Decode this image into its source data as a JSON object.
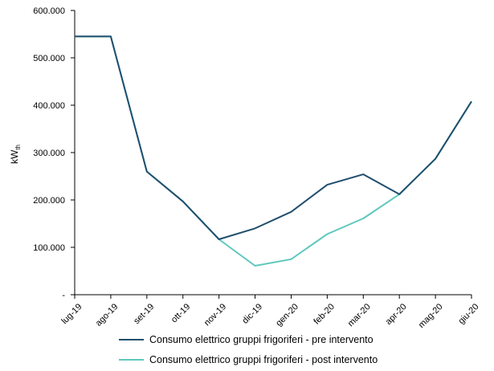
{
  "chart_data": {
    "type": "line",
    "categories": [
      "lug-19",
      "ago-19",
      "set-19",
      "ott-19",
      "nov-19",
      "dic-19",
      "gen-20",
      "feb-20",
      "mar-20",
      "apr-20",
      "mag-20",
      "giu-20"
    ],
    "series": [
      {
        "name": "Consumo elettrico gruppi frigoriferi - pre intervento",
        "color": "#1f4e6e",
        "values": [
          545000,
          545000,
          260000,
          197000,
          117000,
          140000,
          175000,
          232000,
          254000,
          212000,
          287000,
          408000
        ]
      },
      {
        "name": "Consumo elettrico gruppi frigoriferi - post intervento",
        "color": "#5ec8bd",
        "values": [
          545000,
          545000,
          260000,
          197000,
          117000,
          61000,
          75000,
          128000,
          161000,
          212000,
          287000,
          408000
        ]
      }
    ],
    "ylabel": "kW",
    "ylabel_sub": "th",
    "ylim": [
      0,
      600000
    ],
    "yticks": [
      {
        "value": 0,
        "label": "-"
      },
      {
        "value": 100000,
        "label": "100.000"
      },
      {
        "value": 200000,
        "label": "200.000"
      },
      {
        "value": 300000,
        "label": "300.000"
      },
      {
        "value": 400000,
        "label": "400.000"
      },
      {
        "value": 500000,
        "label": "500.000"
      },
      {
        "value": 600000,
        "label": "600.000"
      }
    ],
    "grid": false,
    "legend_position": "bottom"
  }
}
